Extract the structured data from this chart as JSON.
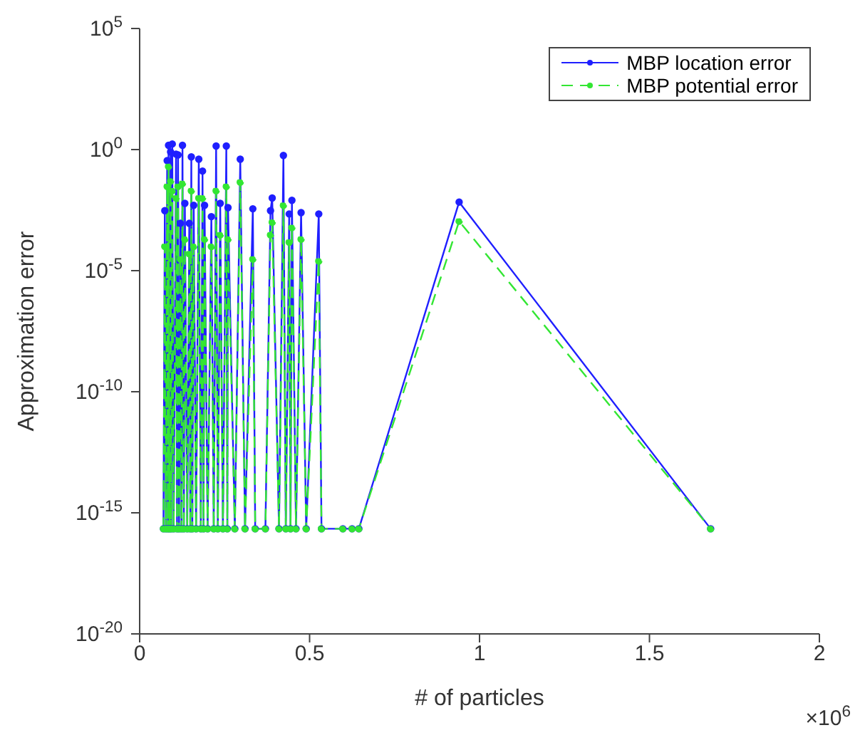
{
  "chart_data": {
    "type": "line",
    "xlabel": "# of particles",
    "ylabel": "Approximation error",
    "annotations": [
      "×10$^{6}$"
    ],
    "x": [
      0.07,
      0.074,
      0.077,
      0.081,
      0.083,
      0.085,
      0.088,
      0.091,
      0.093,
      0.096,
      0.1,
      0.107,
      0.11,
      0.113,
      0.116,
      0.12,
      0.123,
      0.126,
      0.13,
      0.133,
      0.14,
      0.146,
      0.149,
      0.152,
      0.155,
      0.159,
      0.166,
      0.174,
      0.18,
      0.185,
      0.188,
      0.191,
      0.2,
      0.211,
      0.218,
      0.225,
      0.23,
      0.237,
      0.245,
      0.255,
      0.258,
      0.26,
      0.28,
      0.296,
      0.31,
      0.333,
      0.34,
      0.37,
      0.385,
      0.39,
      0.41,
      0.423,
      0.43,
      0.44,
      0.444,
      0.448,
      0.46,
      0.475,
      0.49,
      0.527,
      0.535,
      0.598,
      0.625,
      0.645,
      0.94,
      1.68
    ],
    "series": [
      {
        "name": "MBP location error",
        "color": "#1f1fff",
        "line_style": "solid",
        "values": [
          2.2e-16,
          0.003,
          2.2e-16,
          0.35,
          2.2e-16,
          1.5,
          2.2e-16,
          0.8,
          2.2e-16,
          1.7,
          2.2e-16,
          0.65,
          2.2e-16,
          0.6,
          2.2e-16,
          0.0009,
          2.2e-16,
          1.5,
          2.2e-16,
          0.006,
          2.2e-16,
          0.0009,
          2.2e-16,
          0.5,
          2.2e-16,
          0.005,
          2.2e-16,
          0.4,
          2.2e-16,
          0.13,
          2.2e-16,
          0.005,
          2.2e-16,
          0.0017,
          2.2e-16,
          1.4,
          2.2e-16,
          0.006,
          2.2e-16,
          1.4,
          2.2e-16,
          0.004,
          2.2e-16,
          0.4,
          2.2e-16,
          0.0036,
          2.2e-16,
          2.2e-16,
          0.003,
          0.01,
          2.2e-16,
          0.57,
          2.2e-16,
          0.0022,
          2.2e-16,
          0.008,
          2.2e-16,
          0.0025,
          2.2e-16,
          0.0022,
          2.2e-16,
          2.2e-16,
          2.2e-16,
          2.2e-16,
          0.0068,
          2.2e-16
        ]
      },
      {
        "name": "MBP potential error",
        "color": "#33e633",
        "line_style": "dashed",
        "values": [
          2.2e-16,
          0.0001,
          2.2e-16,
          0.03,
          2.2e-16,
          0.2,
          2.2e-16,
          0.05,
          2.2e-16,
          0.02,
          2.2e-16,
          0.01,
          2.2e-16,
          0.03,
          2.2e-16,
          3e-05,
          2.2e-16,
          0.04,
          2.2e-16,
          0.0002,
          2.2e-16,
          5e-05,
          2.2e-16,
          0.02,
          2.2e-16,
          0.0001,
          2.2e-16,
          0.01,
          2.2e-16,
          0.01,
          2.2e-16,
          0.0002,
          2.2e-16,
          0.0001,
          2.2e-16,
          0.02,
          2.2e-16,
          0.0003,
          2.2e-16,
          0.03,
          2.2e-16,
          0.0002,
          2.2e-16,
          0.045,
          2.2e-16,
          3e-05,
          2.2e-16,
          2.2e-16,
          0.0003,
          0.001,
          2.2e-16,
          0.005,
          2.2e-16,
          0.00015,
          2.2e-16,
          0.0006,
          2.2e-16,
          0.0002,
          2.2e-16,
          2.5e-05,
          2.2e-16,
          2.2e-16,
          2.2e-16,
          2.2e-16,
          0.0011,
          2.2e-16
        ]
      }
    ],
    "xlim": [
      0,
      2
    ],
    "xticks": [
      0,
      0.5,
      1,
      1.5,
      2
    ],
    "ylim": [
      1e-20,
      100000.0
    ],
    "yticks": [
      {
        "value": 1e-20,
        "label": "10$^{-20}$"
      },
      {
        "value": 1e-15,
        "label": "10$^{-15}$"
      },
      {
        "value": 1e-10,
        "label": "10$^{-10}$"
      },
      {
        "value": 1e-05,
        "label": "10$^{-5}$"
      },
      {
        "value": 1,
        "label": "10$^{0}$"
      },
      {
        "value": 100000.0,
        "label": "10$^{5}$"
      }
    ],
    "log": "y",
    "legend": "top right",
    "marker": "circle"
  }
}
